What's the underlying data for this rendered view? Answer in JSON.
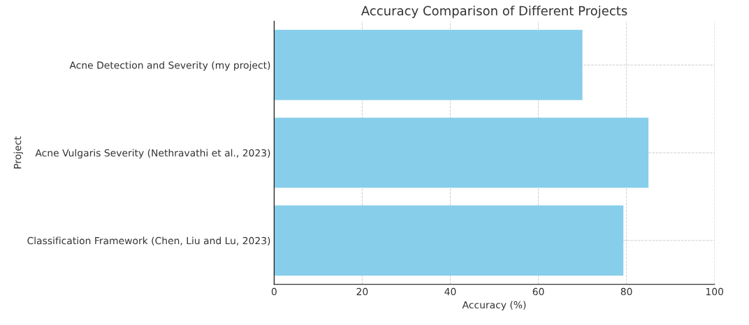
{
  "chart_data": {
    "type": "bar",
    "orientation": "horizontal",
    "title": "Accuracy Comparison of Different Projects",
    "xlabel": "Accuracy (%)",
    "ylabel": "Project",
    "categories": [
      "Acne Detection and Severity (my project)",
      "Acne Vulgaris Severity (Nethravathi et al., 2023)",
      "Classification Framework (Chen, Liu and Lu, 2023)"
    ],
    "values": [
      70,
      85,
      79.3
    ],
    "color": "#87ceeb",
    "xlim": [
      0,
      100
    ],
    "xticks": [
      0,
      20,
      40,
      60,
      80,
      100
    ],
    "grid": true,
    "line_style": "dashed"
  }
}
